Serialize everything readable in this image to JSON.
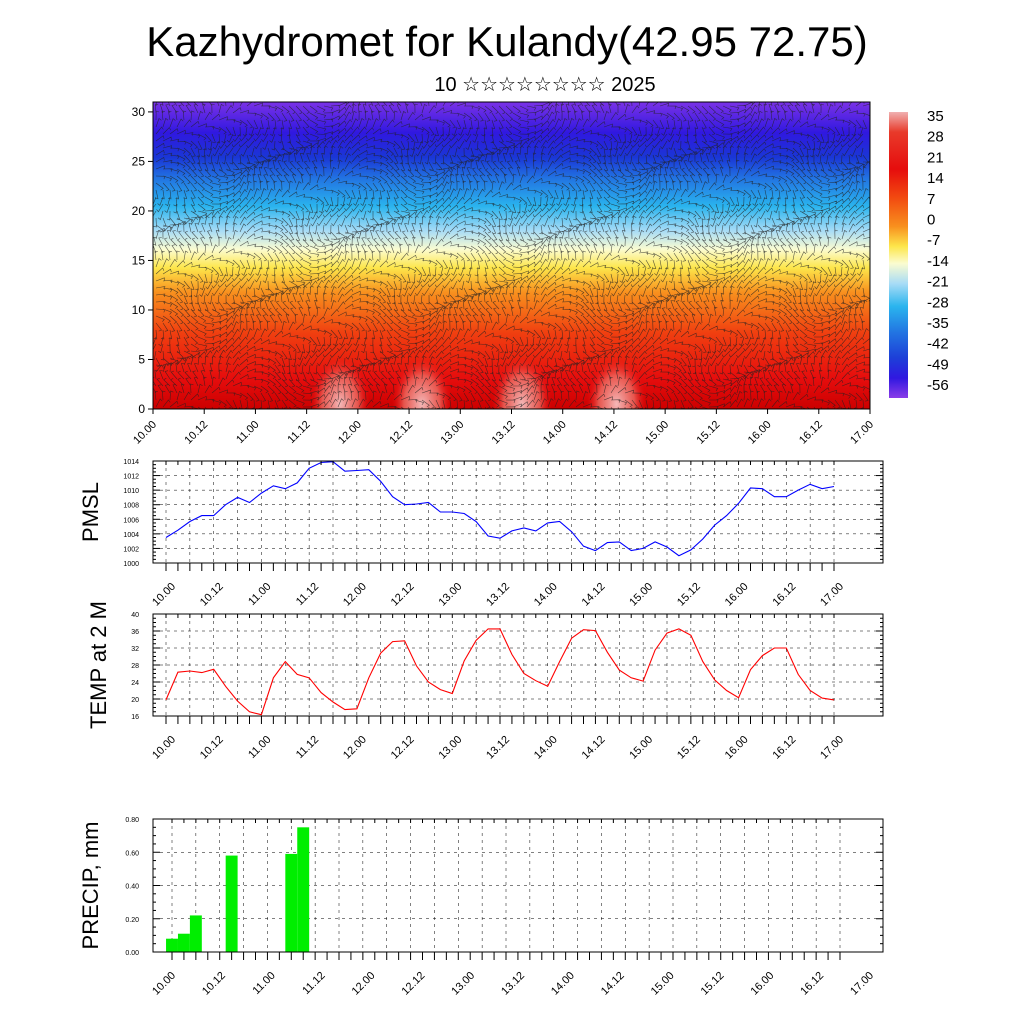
{
  "header": {
    "title": "Kazhydromet for Kulandy(42.95 72.75)",
    "subtitle": "10 ☆☆☆☆☆☆☆☆ 2025"
  },
  "time_ticks": [
    "10.00",
    "10.12",
    "11.00",
    "11.12",
    "12.00",
    "12.12",
    "13.00",
    "13.12",
    "14.00",
    "14.12",
    "15.00",
    "15.12",
    "16.00",
    "16.12",
    "17.00"
  ],
  "chart_data": [
    {
      "type": "heatmap",
      "title": "",
      "xlabel": "",
      "ylabel": "",
      "x": [
        "10.00",
        "10.12",
        "11.00",
        "11.12",
        "12.00",
        "12.12",
        "13.00",
        "13.12",
        "14.00",
        "14.12",
        "15.00",
        "15.12",
        "16.00",
        "16.12",
        "17.00"
      ],
      "y_ticks": [
        0,
        5,
        10,
        15,
        20,
        25,
        30
      ],
      "ylim": [
        0,
        31
      ],
      "colorbar_labels": [
        "35",
        "28",
        "21",
        "14",
        "7",
        "0",
        "-7",
        "-14",
        "-21",
        "-28",
        "-35",
        "-42",
        "-49",
        "-56"
      ],
      "colorbar_colors": [
        "#f0b0b0",
        "#e83a2a",
        "#e60d0d",
        "#f24a10",
        "#f87d1c",
        "#fbb62a",
        "#fde64b",
        "#fbfcd0",
        "#a8dcf6",
        "#2ab4ee",
        "#2275e2",
        "#1d3fd8",
        "#3018e0",
        "#8a3ce8"
      ],
      "wind_barbs": true,
      "grid": false
    },
    {
      "type": "line",
      "title": "",
      "ylabel": "PMSL",
      "xlabel": "",
      "ylim": [
        1000,
        1014
      ],
      "y_ticks": [
        1000,
        1002,
        1004,
        1006,
        1008,
        1010,
        1012,
        1014
      ],
      "color": "#0000ff",
      "grid": true,
      "series": [
        {
          "values": [
            1003.5,
            1004.5,
            1005.7,
            1006.5,
            1006.5,
            1008.0,
            1009.0,
            1008.3,
            1009.6,
            1010.6,
            1010.2,
            1011.0,
            1013.0,
            1013.8,
            1013.9,
            1012.6,
            1012.7,
            1012.8,
            1011.2,
            1009.1,
            1008.0,
            1008.1,
            1008.3,
            1007.0,
            1007.0,
            1006.8,
            1005.7,
            1003.7,
            1003.4,
            1004.4,
            1004.8,
            1004.4,
            1005.5,
            1005.7,
            1004.3,
            1002.3,
            1001.7,
            1002.8,
            1002.9,
            1001.7,
            1002.0,
            1002.9,
            1002.2,
            1001.0,
            1001.8,
            1003.3,
            1005.2,
            1006.5,
            1008.2,
            1010.3,
            1010.2,
            1009.1,
            1009.1,
            1010.0,
            1010.8,
            1010.2,
            1010.5
          ]
        }
      ]
    },
    {
      "type": "line",
      "title": "",
      "ylabel": "TEMP at 2 M",
      "xlabel": "",
      "ylim": [
        16,
        40
      ],
      "y_ticks": [
        16,
        20,
        24,
        28,
        32,
        36,
        40
      ],
      "color": "#ff0000",
      "grid": true,
      "series": [
        {
          "values": [
            19.8,
            26.3,
            26.6,
            26.2,
            27.0,
            23.0,
            19.5,
            17.0,
            16.3,
            25.0,
            28.8,
            25.8,
            25.0,
            21.5,
            19.3,
            17.5,
            17.7,
            25.0,
            30.8,
            33.5,
            33.7,
            27.8,
            24.0,
            22.2,
            21.3,
            29.0,
            33.8,
            36.5,
            36.5,
            30.5,
            26.0,
            24.3,
            23.0,
            28.8,
            34.3,
            36.3,
            36.1,
            31.0,
            26.8,
            25.0,
            24.2,
            31.5,
            35.5,
            36.5,
            35.0,
            28.8,
            24.5,
            22.0,
            20.3,
            26.9,
            30.2,
            32.0,
            32.0,
            25.8,
            22.0,
            20.2,
            19.8
          ]
        }
      ]
    },
    {
      "type": "bar",
      "title": "",
      "ylabel": "PRECIP, mm",
      "xlabel": "",
      "ylim": [
        0,
        0.8
      ],
      "y_ticks": [
        "0.00",
        "0.20",
        "0.40",
        "0.60",
        "0.80"
      ],
      "color": "#00ee00",
      "grid": true,
      "series": [
        {
          "values": [
            0.08,
            0.11,
            0.22,
            0,
            0,
            0.58,
            0,
            0,
            0,
            0,
            0.59,
            0.75,
            0,
            0,
            0,
            0,
            0,
            0,
            0,
            0,
            0,
            0,
            0,
            0,
            0,
            0,
            0,
            0,
            0,
            0,
            0,
            0,
            0,
            0,
            0,
            0,
            0,
            0,
            0,
            0,
            0,
            0,
            0,
            0,
            0,
            0,
            0,
            0,
            0,
            0,
            0,
            0,
            0,
            0,
            0,
            0,
            0
          ]
        }
      ]
    }
  ]
}
